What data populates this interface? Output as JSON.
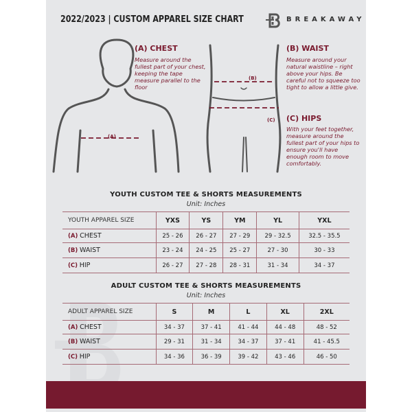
{
  "header": {
    "title": "2022/2023 | CUSTOM APPAREL SIZE CHART",
    "brand": "BREAKAWAY",
    "logo_letter": "B"
  },
  "guides": {
    "chest": {
      "title": "(A) CHEST",
      "text": "Measure around the fullest part of your chest, keeping the tape measure parallel to the floor",
      "marker": "(A)"
    },
    "waist": {
      "title": "(B) WAIST",
      "text": "Measure around your natural waistline – right above your hips. Be careful not to squeeze too tight to allow a little give.",
      "marker": "(B)"
    },
    "hips": {
      "title": "(C) HIPS",
      "text": "With your feet together, measure around the fullest part of your hips to ensure you'll have enough room to move comfortably.",
      "marker": "(C)"
    }
  },
  "youth": {
    "title": "YOUTH CUSTOM TEE & SHORTS MEASUREMENTS",
    "unit": "Unit: Inches",
    "header": [
      "YOUTH APPAREL SIZE",
      "YXS",
      "YS",
      "YM",
      "YL",
      "YXL"
    ],
    "rows": [
      {
        "code": "(A)",
        "label": "CHEST",
        "values": [
          "25 - 26",
          "26 - 27",
          "27 - 29",
          "29 - 32.5",
          "32.5 - 35.5"
        ]
      },
      {
        "code": "(B)",
        "label": "WAIST",
        "values": [
          "23 - 24",
          "24 - 25",
          "25 - 27",
          "27 - 30",
          "30 - 33"
        ]
      },
      {
        "code": "(C)",
        "label": "HIP",
        "values": [
          "26 - 27",
          "27 - 28",
          "28 - 31",
          "31 - 34",
          "34 - 37"
        ]
      }
    ]
  },
  "adult": {
    "title": "ADULT CUSTOM TEE & SHORTS MEASUREMENTS",
    "unit": "Unit: Inches",
    "header": [
      "ADULT APPAREL SIZE",
      "S",
      "M",
      "L",
      "XL",
      "2XL"
    ],
    "rows": [
      {
        "code": "(A)",
        "label": "CHEST",
        "values": [
          "34 - 37",
          "37 - 41",
          "41 - 44",
          "44 - 48",
          "48 - 52"
        ]
      },
      {
        "code": "(B)",
        "label": "WAIST",
        "values": [
          "29 - 31",
          "31 - 34",
          "34 - 37",
          "37 - 41",
          "41 - 45.5"
        ]
      },
      {
        "code": "(C)",
        "label": "HIP",
        "values": [
          "34 - 36",
          "36 - 39",
          "39 - 42",
          "43 - 46",
          "46 - 50"
        ]
      }
    ]
  },
  "colors": {
    "accent": "#761a2f",
    "panel": "#e6e7e9"
  }
}
